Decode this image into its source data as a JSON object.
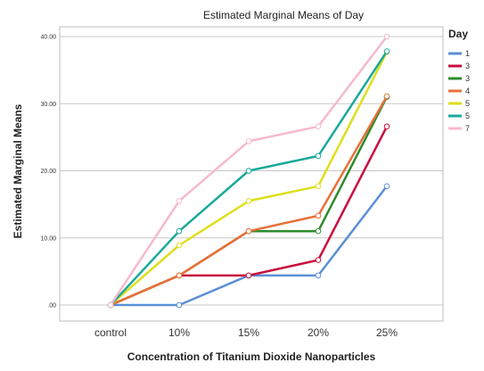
{
  "chart_data": {
    "type": "line",
    "title": "Estimated Marginal Means of Day",
    "xlabel": "Concentration of Titanium Dioxide Nanoparticles",
    "ylabel": "Estimated Marginal Means",
    "categories": [
      "control",
      "10%",
      "15%",
      "20%",
      "25%"
    ],
    "y_ticks": [
      ".00",
      "10.00",
      "20.00",
      "30.00",
      "40.00"
    ],
    "ylim": [
      0,
      40
    ],
    "grid": true,
    "legend": {
      "title": "Day",
      "placement": "right"
    },
    "series": [
      {
        "name": "1",
        "color": "#5b8fd6",
        "values": [
          0,
          0,
          4.4,
          4.4,
          17.7
        ]
      },
      {
        "name": "3",
        "color": "#c8103e",
        "values": [
          0,
          4.4,
          4.4,
          6.7,
          26.6
        ]
      },
      {
        "name": "3",
        "color": "#2e8b2e",
        "values": [
          0,
          4.4,
          11.0,
          11.0,
          31.0
        ]
      },
      {
        "name": "4",
        "color": "#e8703a",
        "values": [
          0,
          4.4,
          11.0,
          13.3,
          31.1
        ]
      },
      {
        "name": "5",
        "color": "#dede1e",
        "values": [
          0,
          8.9,
          15.5,
          17.7,
          37.7
        ]
      },
      {
        "name": "5",
        "color": "#1aa99a",
        "values": [
          0,
          11.0,
          20.0,
          22.2,
          37.8
        ]
      },
      {
        "name": "7",
        "color": "#f7b8d0",
        "values": [
          0,
          15.5,
          24.4,
          26.6,
          40.0
        ]
      }
    ]
  }
}
